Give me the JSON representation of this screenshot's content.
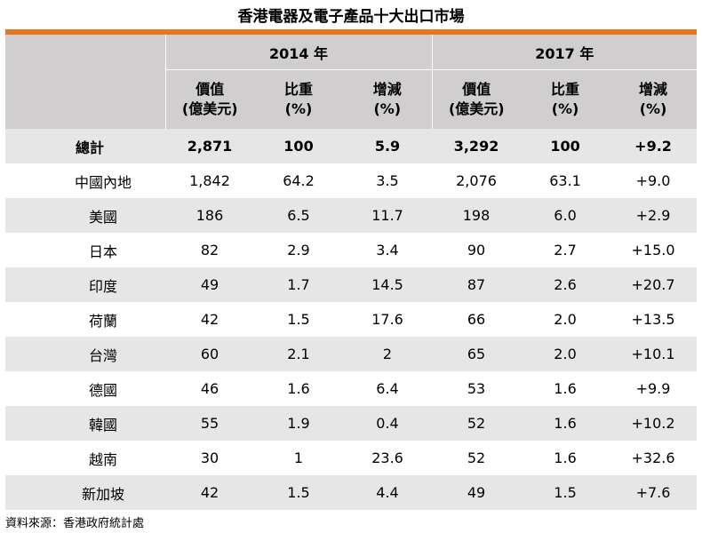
{
  "title": "香港電器及電子產品十大出口市場",
  "header": {
    "year1": "2014 年",
    "year2": "2017 年",
    "col_value_line1": "價值",
    "col_value_line2": "(億美元)",
    "col_share_line1": "比重",
    "col_share_line2": "(%)",
    "col_change_line1": "增減",
    "col_change_line2": "(%)"
  },
  "total": {
    "name": "總計",
    "v2014": "2,871",
    "s2014": "100",
    "c2014": "5.9",
    "v2017": "3,292",
    "s2017": "100",
    "c2017": "+9.2"
  },
  "rows": [
    {
      "name": "中國內地",
      "v2014": "1,842",
      "s2014": "64.2",
      "c2014": "3.5",
      "v2017": "2,076",
      "s2017": "63.1",
      "c2017": "+9.0"
    },
    {
      "name": "美國",
      "v2014": "186",
      "s2014": "6.5",
      "c2014": "11.7",
      "v2017": "198",
      "s2017": "6.0",
      "c2017": "+2.9"
    },
    {
      "name": "日本",
      "v2014": "82",
      "s2014": "2.9",
      "c2014": "3.4",
      "v2017": "90",
      "s2017": "2.7",
      "c2017": "+15.0"
    },
    {
      "name": "印度",
      "v2014": "49",
      "s2014": "1.7",
      "c2014": "14.5",
      "v2017": "87",
      "s2017": "2.6",
      "c2017": "+20.7"
    },
    {
      "name": "荷蘭",
      "v2014": "42",
      "s2014": "1.5",
      "c2014": "17.6",
      "v2017": "66",
      "s2017": "2.0",
      "c2017": "+13.5"
    },
    {
      "name": "台灣",
      "v2014": "60",
      "s2014": "2.1",
      "c2014": "2",
      "v2017": "65",
      "s2017": "2.0",
      "c2017": "+10.1"
    },
    {
      "name": "德國",
      "v2014": "46",
      "s2014": "1.6",
      "c2014": "6.4",
      "v2017": "53",
      "s2017": "1.6",
      "c2017": "+9.9"
    },
    {
      "name": "韓國",
      "v2014": "55",
      "s2014": "1.9",
      "c2014": "0.4",
      "v2017": "52",
      "s2017": "1.6",
      "c2017": "+10.2"
    },
    {
      "name": "越南",
      "v2014": "30",
      "s2014": "1",
      "c2014": "23.6",
      "v2017": "52",
      "s2017": "1.6",
      "c2017": "+32.6"
    },
    {
      "name": "新加坡",
      "v2014": "42",
      "s2014": "1.5",
      "c2014": "4.4",
      "v2017": "49",
      "s2017": "1.5",
      "c2017": "+7.6"
    }
  ],
  "source": "資料來源：香港政府統計處",
  "colors": {
    "accent": "#e8761f",
    "header_bg": "#d0cece",
    "row_shade": "#e6e6e6"
  }
}
